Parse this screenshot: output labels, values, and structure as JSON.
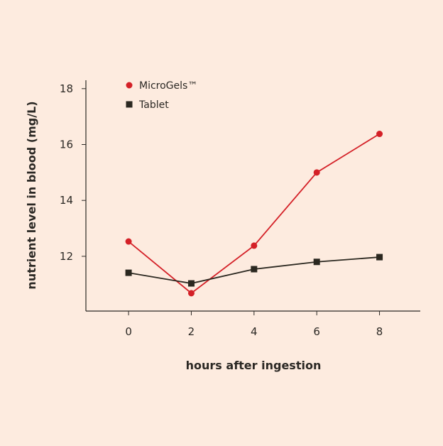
{
  "chart_data": {
    "type": "line",
    "title": "",
    "xlabel": "hours after ingestion",
    "ylabel": "nutrient level in blood (mg/L)",
    "x": [
      0,
      2,
      4,
      6,
      8
    ],
    "xticks": [
      "0",
      "2",
      "4",
      "6",
      "8"
    ],
    "yticks": [
      "12",
      "14",
      "16",
      "18"
    ],
    "xlim": [
      -1.36,
      9.3
    ],
    "ylim": [
      10.04,
      18.3
    ],
    "grid": false,
    "legend_placement": "top-left",
    "series": [
      {
        "name": "MicroGels™",
        "values": [
          12.53,
          10.68,
          12.38,
          15.0,
          16.38
        ],
        "color": "#d42027",
        "marker": "circle"
      },
      {
        "name": "Tablet",
        "values": [
          11.41,
          11.03,
          11.54,
          11.8,
          11.97
        ],
        "color": "#2b2820",
        "marker": "square"
      }
    ]
  }
}
